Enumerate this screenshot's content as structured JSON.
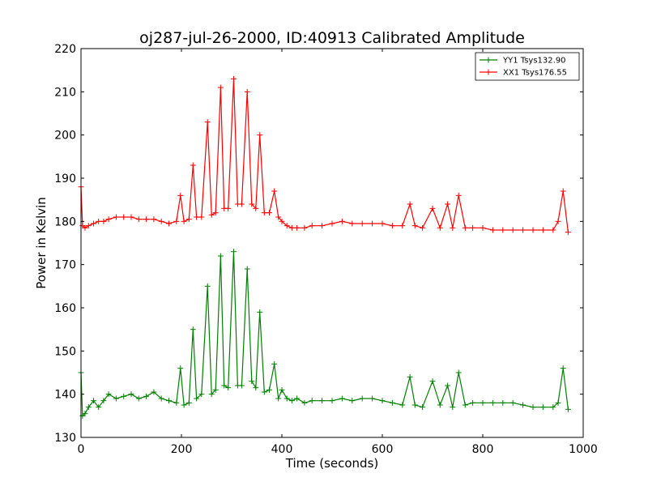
{
  "chart_data": {
    "type": "line",
    "title": "oj287-jul-26-2000, ID:40913 Calibrated Amplitude",
    "xlabel": "Time (seconds)",
    "ylabel": "Power in Kelvin",
    "xlim": [
      0,
      1000
    ],
    "ylim": [
      130,
      220
    ],
    "xticks": [
      0,
      200,
      400,
      600,
      800,
      1000
    ],
    "yticks": [
      130,
      140,
      150,
      160,
      170,
      180,
      190,
      200,
      210,
      220
    ],
    "grid": false,
    "legend_position": "top-right",
    "marker": "+",
    "series": [
      {
        "name": "YY1 Tsys132.90",
        "color": "#008000",
        "points": [
          [
            0,
            145
          ],
          [
            3,
            135
          ],
          [
            8,
            135.5
          ],
          [
            15,
            137
          ],
          [
            25,
            138.5
          ],
          [
            35,
            137
          ],
          [
            45,
            138.5
          ],
          [
            55,
            140
          ],
          [
            70,
            139
          ],
          [
            85,
            139.5
          ],
          [
            100,
            140
          ],
          [
            115,
            139
          ],
          [
            130,
            139.5
          ],
          [
            145,
            140.5
          ],
          [
            160,
            139
          ],
          [
            175,
            138.5
          ],
          [
            190,
            138
          ],
          [
            198,
            146
          ],
          [
            205,
            137.5
          ],
          [
            215,
            138
          ],
          [
            223,
            155
          ],
          [
            230,
            139
          ],
          [
            240,
            140
          ],
          [
            252,
            165
          ],
          [
            260,
            140
          ],
          [
            268,
            141
          ],
          [
            278,
            172
          ],
          [
            285,
            142
          ],
          [
            293,
            141.5
          ],
          [
            304,
            173
          ],
          [
            312,
            142
          ],
          [
            320,
            142
          ],
          [
            331,
            169
          ],
          [
            340,
            143
          ],
          [
            348,
            141.5
          ],
          [
            356,
            159
          ],
          [
            365,
            140.5
          ],
          [
            375,
            141
          ],
          [
            385,
            147
          ],
          [
            393,
            139
          ],
          [
            400,
            141
          ],
          [
            410,
            139
          ],
          [
            420,
            138.5
          ],
          [
            430,
            139
          ],
          [
            445,
            138
          ],
          [
            460,
            138.5
          ],
          [
            480,
            138.5
          ],
          [
            500,
            138.5
          ],
          [
            520,
            139
          ],
          [
            540,
            138.5
          ],
          [
            560,
            139
          ],
          [
            580,
            139
          ],
          [
            600,
            138.5
          ],
          [
            620,
            138
          ],
          [
            640,
            137.5
          ],
          [
            655,
            144
          ],
          [
            665,
            137.5
          ],
          [
            680,
            137
          ],
          [
            700,
            143
          ],
          [
            715,
            137.5
          ],
          [
            730,
            142
          ],
          [
            740,
            137
          ],
          [
            752,
            145
          ],
          [
            765,
            137.5
          ],
          [
            780,
            138
          ],
          [
            800,
            138
          ],
          [
            820,
            138
          ],
          [
            840,
            138
          ],
          [
            860,
            138
          ],
          [
            880,
            137.5
          ],
          [
            900,
            137
          ],
          [
            920,
            137
          ],
          [
            940,
            137
          ],
          [
            950,
            138
          ],
          [
            960,
            146
          ],
          [
            970,
            136.5
          ]
        ]
      },
      {
        "name": "XX1 Tsys176.55",
        "color": "#ff0000",
        "points": [
          [
            0,
            188
          ],
          [
            3,
            179
          ],
          [
            8,
            178.5
          ],
          [
            15,
            179
          ],
          [
            25,
            179.5
          ],
          [
            35,
            180
          ],
          [
            45,
            180
          ],
          [
            55,
            180.5
          ],
          [
            70,
            181
          ],
          [
            85,
            181
          ],
          [
            100,
            181
          ],
          [
            115,
            180.5
          ],
          [
            130,
            180.5
          ],
          [
            145,
            180.5
          ],
          [
            160,
            180
          ],
          [
            175,
            179.5
          ],
          [
            190,
            180
          ],
          [
            198,
            186
          ],
          [
            205,
            180
          ],
          [
            215,
            180.5
          ],
          [
            223,
            193
          ],
          [
            230,
            181
          ],
          [
            240,
            181
          ],
          [
            252,
            203
          ],
          [
            260,
            181.5
          ],
          [
            268,
            182
          ],
          [
            278,
            211
          ],
          [
            285,
            183
          ],
          [
            293,
            183
          ],
          [
            304,
            213
          ],
          [
            312,
            184
          ],
          [
            320,
            184
          ],
          [
            331,
            210
          ],
          [
            340,
            184
          ],
          [
            348,
            183
          ],
          [
            356,
            200
          ],
          [
            365,
            182
          ],
          [
            375,
            182
          ],
          [
            385,
            187
          ],
          [
            393,
            181
          ],
          [
            400,
            180
          ],
          [
            410,
            179
          ],
          [
            420,
            178.5
          ],
          [
            430,
            178.5
          ],
          [
            445,
            178.5
          ],
          [
            460,
            179
          ],
          [
            480,
            179
          ],
          [
            500,
            179.5
          ],
          [
            520,
            180
          ],
          [
            540,
            179.5
          ],
          [
            560,
            179.5
          ],
          [
            580,
            179.5
          ],
          [
            600,
            179.5
          ],
          [
            620,
            179
          ],
          [
            640,
            179
          ],
          [
            655,
            184
          ],
          [
            665,
            179
          ],
          [
            680,
            178.5
          ],
          [
            700,
            183
          ],
          [
            715,
            178.5
          ],
          [
            730,
            184
          ],
          [
            740,
            178.5
          ],
          [
            752,
            186
          ],
          [
            765,
            178.5
          ],
          [
            780,
            178.5
          ],
          [
            800,
            178.5
          ],
          [
            820,
            178
          ],
          [
            840,
            178
          ],
          [
            860,
            178
          ],
          [
            880,
            178
          ],
          [
            900,
            178
          ],
          [
            920,
            178
          ],
          [
            940,
            178
          ],
          [
            950,
            180
          ],
          [
            960,
            187
          ],
          [
            970,
            177.5
          ]
        ]
      }
    ]
  }
}
